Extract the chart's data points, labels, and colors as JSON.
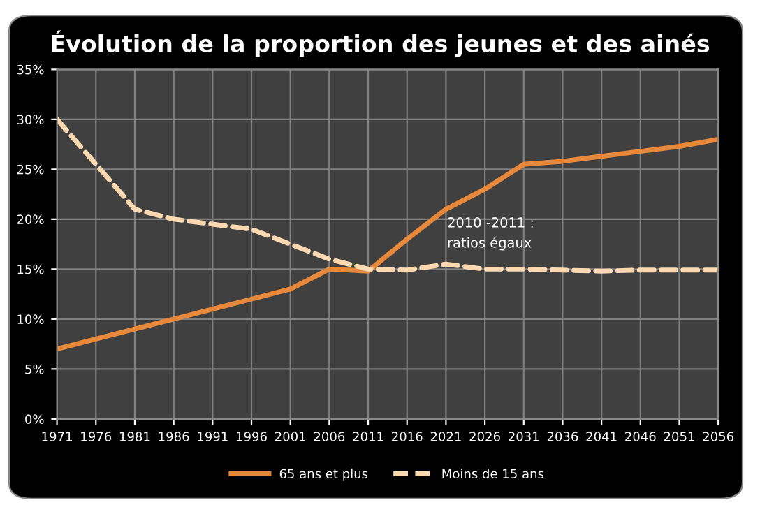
{
  "chart_data": {
    "type": "line",
    "title": "Évolution de la proportion des jeunes et des ainés",
    "x": [
      1971,
      1976,
      1981,
      1986,
      1991,
      1996,
      2001,
      2006,
      2011,
      2016,
      2021,
      2026,
      2031,
      2036,
      2041,
      2046,
      2051,
      2056
    ],
    "series": [
      {
        "name": "65 ans et plus",
        "color": "#e8883a",
        "line_style": "solid",
        "values": [
          7,
          8,
          9,
          10,
          11,
          12,
          13,
          15,
          14.8,
          18,
          21,
          23,
          25.5,
          25.8,
          26.3,
          26.8,
          27.3,
          28
        ]
      },
      {
        "name": "Moins de 15 ans",
        "color": "#fcd9b0",
        "line_style": "dashed",
        "values": [
          30,
          25.5,
          21,
          20,
          19.5,
          19,
          17.5,
          16,
          15,
          14.9,
          15.5,
          15,
          15,
          14.9,
          14.8,
          14.9,
          14.9,
          14.9
        ]
      }
    ],
    "xlim": [
      1971,
      2056
    ],
    "xticks": [
      1971,
      1976,
      1981,
      1986,
      1991,
      1996,
      2001,
      2006,
      2011,
      2016,
      2021,
      2026,
      2031,
      2036,
      2041,
      2046,
      2051,
      2056
    ],
    "ylim": [
      0,
      35
    ],
    "yticks": [
      {
        "value": 0,
        "label": "0%"
      },
      {
        "value": 5,
        "label": "5%"
      },
      {
        "value": 10,
        "label": "10%"
      },
      {
        "value": 15,
        "label": "15%"
      },
      {
        "value": 20,
        "label": "20%"
      },
      {
        "value": 25,
        "label": "25%"
      },
      {
        "value": 30,
        "label": "30%"
      },
      {
        "value": 35,
        "label": "35%"
      }
    ],
    "grid": true,
    "legend": "bottom",
    "marker": "none",
    "annotations": [
      "2010 -2011 :\nratios égaux"
    ]
  }
}
